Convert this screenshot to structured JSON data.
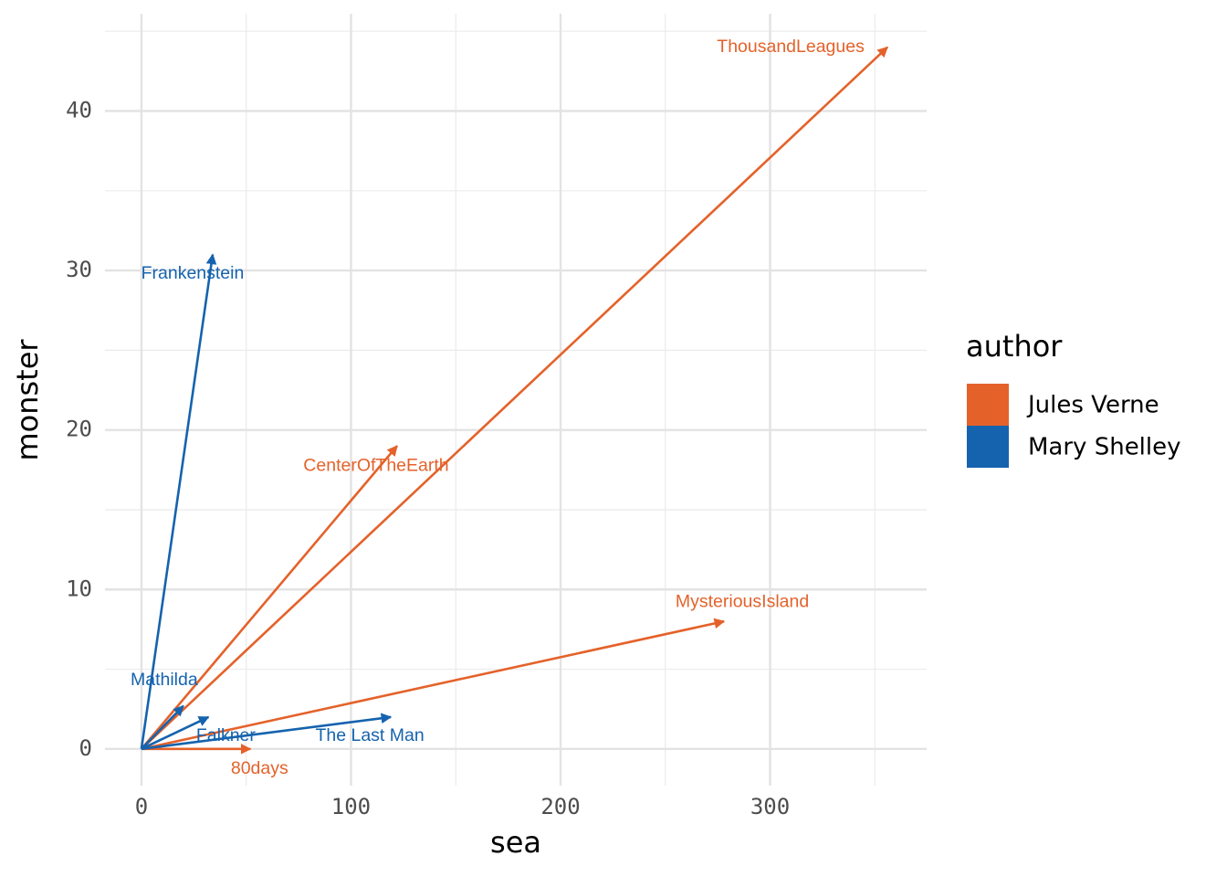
{
  "chart_data": {
    "type": "vector",
    "x_label": "sea",
    "y_label": "monster",
    "legend_title": "author",
    "legend_position": "right",
    "grid": true,
    "xlim": [
      -17.4,
      374.7
    ],
    "ylim": [
      -2.3,
      46.1
    ],
    "xticks": [
      0,
      100,
      200,
      300
    ],
    "yticks": [
      0,
      10,
      20,
      30,
      40
    ],
    "minor_xticks": [
      50,
      150,
      250,
      350
    ],
    "minor_yticks": [
      5,
      15,
      25,
      35,
      45
    ],
    "series": [
      {
        "name": "Jules Verne",
        "color": "#e4622a",
        "labels": [
          "ThousandLeagues",
          "CenterOfTheEarth",
          "MysteriousIsland",
          "80days"
        ],
        "x": [
          356,
          122,
          278,
          52
        ],
        "y": [
          44,
          19,
          8,
          0
        ]
      },
      {
        "name": "Mary Shelley",
        "color": "#1563ae",
        "labels": [
          "Frankenstein",
          "Mathilda",
          "Falkner",
          "The Last Man"
        ],
        "x": [
          34,
          20,
          32,
          119
        ],
        "y": [
          31,
          2.7,
          2,
          2
        ]
      }
    ]
  }
}
